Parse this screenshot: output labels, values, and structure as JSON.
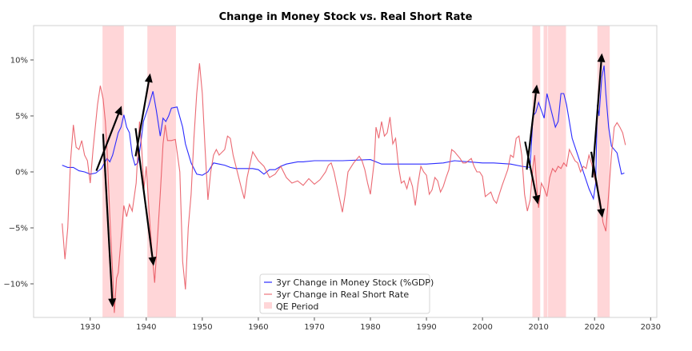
{
  "chart_data": {
    "type": "line",
    "title": "Change in Money Stock vs. Real Short Rate",
    "xlabel": "",
    "ylabel": "",
    "xlim": [
      1919.9,
      2031.1
    ],
    "ylim": [
      -13.0,
      13.07
    ],
    "grid": false,
    "legend_position": "bottom-center",
    "x_ticks": [
      1930,
      1940,
      1950,
      1960,
      1970,
      1980,
      1990,
      2000,
      2010,
      2020,
      2030
    ],
    "x_tick_labels": [
      "1930",
      "1940",
      "1950",
      "1960",
      "1970",
      "1980",
      "1990",
      "2000",
      "2010",
      "2020",
      "2030"
    ],
    "y_ticks": [
      -10,
      -5,
      0,
      5,
      10
    ],
    "y_tick_labels": [
      "−10%",
      "−5%",
      "0%",
      "5%",
      "10%"
    ],
    "series": [
      {
        "name": "3yr Change in Money Stock (%GDP)",
        "color": "#2b2bff",
        "x": [
          1925,
          1926,
          1927,
          1928,
          1929,
          1930,
          1931,
          1932,
          1933,
          1933.5,
          1934,
          1935,
          1935.5,
          1936,
          1936.5,
          1937,
          1937.5,
          1938,
          1938.5,
          1939,
          1939.5,
          1940.5,
          1941.2,
          1941.8,
          1942.5,
          1943,
          1943.5,
          1944,
          1944.5,
          1945.5,
          1946.5,
          1947,
          1948,
          1949,
          1950,
          1951,
          1952,
          1953,
          1954,
          1955,
          1956,
          1957,
          1958,
          1959,
          1960,
          1961,
          1962,
          1963,
          1964,
          1965,
          1966,
          1967,
          1968,
          1970,
          1975,
          1980,
          1982,
          1985,
          1990,
          1993,
          1995,
          2000,
          2002,
          2005,
          2007,
          2008.5,
          2009,
          2009.5,
          2010,
          2010.5,
          2011,
          2011.5,
          2012,
          2013,
          2013.5,
          2014,
          2014.5,
          2015,
          2016,
          2017,
          2018,
          2019,
          2019.8,
          2020.2,
          2020.5,
          2020.8,
          2021.3,
          2021.7,
          2022,
          2022.5,
          2023,
          2024,
          2024.8,
          2025.3
        ],
        "y": [
          0.6,
          0.4,
          0.4,
          0.1,
          0.0,
          -0.2,
          -0.1,
          0.3,
          1.2,
          0.9,
          1.5,
          3.5,
          4.0,
          5.1,
          4.0,
          3.5,
          1.5,
          0.6,
          0.8,
          2.5,
          4.5,
          6.0,
          7.2,
          5.5,
          3.2,
          4.8,
          4.5,
          5.0,
          5.7,
          5.8,
          4.0,
          2.5,
          0.8,
          -0.2,
          -0.3,
          0.0,
          0.8,
          0.7,
          0.6,
          0.4,
          0.3,
          0.3,
          0.3,
          0.3,
          0.2,
          -0.2,
          0.2,
          0.2,
          0.5,
          0.7,
          0.8,
          0.9,
          0.9,
          1.0,
          1.0,
          1.1,
          0.7,
          0.7,
          0.7,
          0.8,
          1.0,
          0.8,
          0.8,
          0.7,
          0.5,
          0.4,
          5.0,
          5.3,
          6.2,
          5.5,
          4.8,
          7.0,
          6.0,
          4.0,
          4.5,
          7.0,
          7.0,
          6.0,
          3.0,
          1.5,
          0.0,
          -1.5,
          -2.4,
          -1.0,
          6.0,
          5.0,
          8.5,
          9.5,
          7.0,
          4.0,
          2.3,
          1.7,
          -0.2,
          -0.1
        ]
      },
      {
        "name": "3yr Change in Real Short Rate",
        "color": "#e8505b",
        "x": [
          1925,
          1925.5,
          1926,
          1926.5,
          1927,
          1927.5,
          1928,
          1928.5,
          1929,
          1929.5,
          1930,
          1930.5,
          1931,
          1931.3,
          1931.8,
          1932.3,
          1932.7,
          1933,
          1933.5,
          1934,
          1934.3,
          1934.7,
          1935,
          1935.5,
          1936,
          1936.5,
          1937,
          1937.5,
          1938.2,
          1938.8,
          1939.2,
          1939.6,
          1940,
          1940.5,
          1941,
          1941.5,
          1942,
          1942.5,
          1943,
          1943.4,
          1943.8,
          1944.5,
          1945.2,
          1946,
          1946.5,
          1947,
          1947.5,
          1948,
          1948.5,
          1949,
          1949.5,
          1950,
          1950.5,
          1951,
          1951.5,
          1952,
          1952.5,
          1953,
          1954,
          1954.5,
          1955,
          1955.5,
          1956,
          1957,
          1957.5,
          1958,
          1959,
          1959.5,
          1960,
          1961,
          1962,
          1963,
          1964,
          1965,
          1966,
          1967,
          1968,
          1969,
          1970,
          1971,
          1972,
          1972.5,
          1973,
          1973.5,
          1974,
          1974.5,
          1975,
          1975.5,
          1976,
          1977,
          1978,
          1978.5,
          1979,
          1979.5,
          1980,
          1980.7,
          1981,
          1981.5,
          1982,
          1982.5,
          1983,
          1983.5,
          1984,
          1984.5,
          1985,
          1985.5,
          1986,
          1986.5,
          1987,
          1987.5,
          1988,
          1988.5,
          1989,
          1989.5,
          1990,
          1990.5,
          1991,
          1991.5,
          1992,
          1992.5,
          1993,
          1993.5,
          1994,
          1994.5,
          1995,
          1996,
          1996.5,
          1997,
          1998,
          1998.5,
          1999,
          1999.5,
          2000,
          2000.5,
          2001,
          2001.5,
          2002,
          2002.5,
          2003,
          2003.5,
          2004,
          2004.5,
          2005,
          2005.5,
          2006,
          2006.5,
          2007,
          2007.5,
          2008,
          2008.5,
          2009,
          2009.3,
          2009.7,
          2010,
          2010.5,
          2011,
          2011.5,
          2012,
          2012.5,
          2013,
          2013.5,
          2014,
          2014.5,
          2015,
          2015.5,
          2016,
          2016.5,
          2017,
          2017.5,
          2018,
          2018.5,
          2019,
          2019.5,
          2020,
          2020.5,
          2021,
          2021.5,
          2022,
          2022.5,
          2023,
          2023.5,
          2024,
          2024.5,
          2025,
          2025.5
        ],
        "y": [
          -4.6,
          -7.8,
          -5.0,
          1.0,
          4.2,
          2.2,
          2.0,
          2.8,
          1.5,
          1.0,
          -1.0,
          2.0,
          4.5,
          6.0,
          7.7,
          6.5,
          4.5,
          2.0,
          -4.0,
          -9.0,
          -12.6,
          -9.5,
          -9.0,
          -6.0,
          -3.0,
          -4.0,
          -2.9,
          -3.5,
          -1.0,
          4.5,
          2.0,
          -1.5,
          0.5,
          -3.5,
          -7.0,
          -9.9,
          -6.0,
          -2.0,
          2.5,
          4.2,
          2.8,
          2.8,
          2.9,
          0.0,
          -8.0,
          -10.5,
          -5.0,
          -2.0,
          3.0,
          7.0,
          9.7,
          7.0,
          2.0,
          -2.5,
          0.0,
          1.5,
          2.0,
          1.5,
          2.0,
          3.2,
          3.0,
          1.5,
          0.5,
          -1.5,
          -2.4,
          -0.5,
          1.8,
          1.4,
          1.0,
          0.5,
          -0.5,
          -0.2,
          0.5,
          -0.5,
          -1.0,
          -0.8,
          -1.2,
          -0.6,
          -1.1,
          -0.7,
          0.0,
          0.6,
          0.8,
          0.0,
          -1.2,
          -2.4,
          -3.6,
          -2.0,
          0.0,
          0.8,
          1.4,
          1.0,
          0.2,
          -1.0,
          -2.0,
          1.0,
          4.0,
          3.0,
          4.5,
          3.2,
          3.5,
          4.9,
          2.5,
          3.0,
          0.5,
          -1.0,
          -0.8,
          -1.5,
          -0.5,
          -1.3,
          -3.0,
          -1.0,
          0.5,
          0.0,
          -0.3,
          -2.0,
          -1.6,
          -0.5,
          -0.8,
          -1.8,
          -1.3,
          -0.5,
          0.2,
          2.0,
          1.8,
          1.2,
          0.8,
          0.8,
          1.2,
          0.5,
          0.0,
          0.0,
          -0.4,
          -2.2,
          -2.0,
          -1.8,
          -2.5,
          -2.8,
          -2.0,
          -1.2,
          -0.5,
          0.2,
          1.5,
          1.3,
          3.0,
          3.2,
          1.5,
          -2.0,
          -3.5,
          -2.5,
          0.5,
          1.5,
          -1.5,
          -3.2,
          -1.0,
          -1.5,
          -2.2,
          -0.5,
          0.3,
          0.0,
          0.5,
          0.3,
          0.8,
          0.5,
          2.0,
          1.5,
          1.0,
          0.8,
          0.0,
          0.5,
          0.3,
          1.5,
          0.7,
          -0.5,
          -1.5,
          -2.5,
          -4.5,
          -5.3,
          -2.0,
          1.5,
          4.0,
          4.4,
          4.0,
          3.5,
          2.4
        ]
      }
    ],
    "shaded_regions": {
      "name": "QE Period",
      "color": "#ffd6d8",
      "ranges": [
        [
          1932.2,
          1936.0
        ],
        [
          1940.2,
          1945.3
        ],
        [
          2008.9,
          2010.3
        ],
        [
          2010.9,
          2011.6
        ],
        [
          2011.7,
          2014.9
        ],
        [
          2020.5,
          2022.7
        ]
      ]
    },
    "annotations": {
      "type": "arrows",
      "color": "#000000",
      "items": [
        {
          "from": [
            1931.1,
            0.1
          ],
          "to": [
            1935.6,
            5.9
          ]
        },
        {
          "from": [
            1932.3,
            3.4
          ],
          "to": [
            1934.0,
            -12.1
          ]
        },
        {
          "from": [
            1938.1,
            1.4
          ],
          "to": [
            1940.7,
            8.8
          ]
        },
        {
          "from": [
            1938.1,
            3.9
          ],
          "to": [
            1941.3,
            -8.4
          ]
        },
        {
          "from": [
            2007.9,
            0.2
          ],
          "to": [
            2009.7,
            7.8
          ]
        },
        {
          "from": [
            2007.6,
            2.7
          ],
          "to": [
            2009.9,
            -2.9
          ]
        },
        {
          "from": [
            2019.6,
            -0.5
          ],
          "to": [
            2021.3,
            10.6
          ]
        },
        {
          "from": [
            2019.4,
            1.8
          ],
          "to": [
            2021.4,
            -4.1
          ]
        }
      ]
    },
    "legend": [
      "3yr Change in Money Stock (%GDP)",
      "3yr Change in Real Short Rate",
      "QE Period"
    ]
  }
}
